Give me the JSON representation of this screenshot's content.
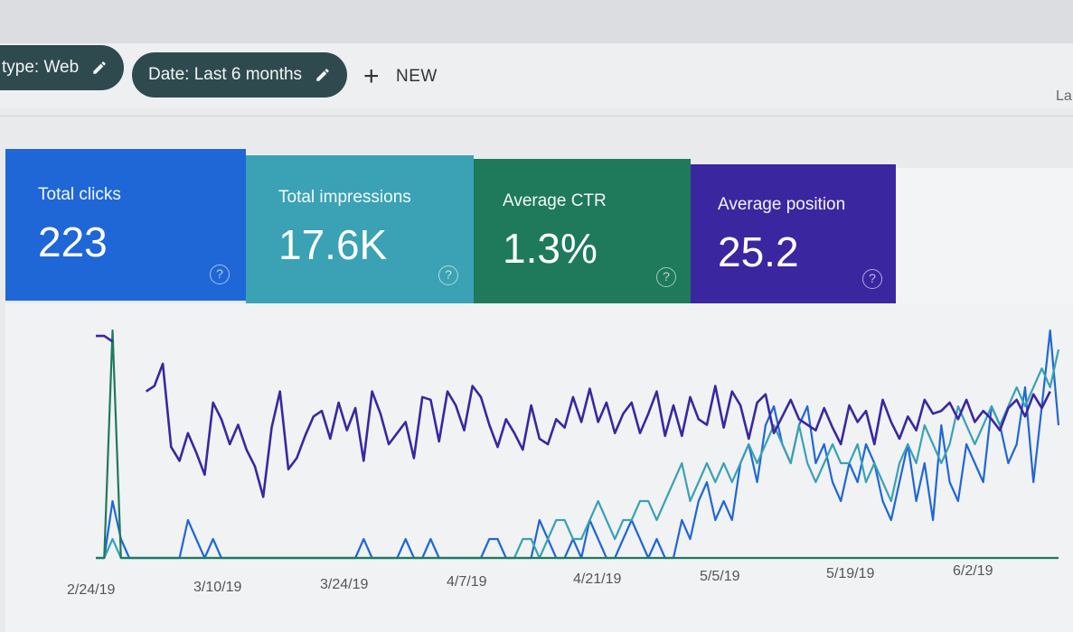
{
  "filters": {
    "type_chip": "type: Web",
    "date_chip": "Date: Last 6 months",
    "new_label": "NEW",
    "right_cut_text": "La"
  },
  "metrics": [
    {
      "label": "Total clicks",
      "value": "223",
      "color": "#1f67d6"
    },
    {
      "label": "Total impressions",
      "value": "17.6K",
      "color": "#3aa2b4"
    },
    {
      "label": "Average CTR",
      "value": "1.3%",
      "color": "#1e7a5b"
    },
    {
      "label": "Average position",
      "value": "25.2",
      "color": "#3a27a0"
    }
  ],
  "help_glyph": "?",
  "icons": [
    "pencil-icon",
    "plus-icon",
    "help-circle-icon"
  ],
  "chart_data": {
    "type": "line",
    "x_tick_labels": [
      "2/24/19",
      "3/10/19",
      "3/24/19",
      "4/7/19",
      "4/21/19",
      "5/5/19",
      "5/19/19",
      "6/2/19"
    ],
    "grid": false,
    "series": [
      {
        "color": "#1f67d6",
        "values": [
          0,
          0,
          3,
          1,
          0,
          0,
          0,
          0,
          0,
          0,
          0,
          2,
          1,
          0,
          1,
          0,
          0,
          0,
          0,
          0,
          0,
          0,
          0,
          0,
          0,
          0,
          0,
          0,
          0,
          0,
          0,
          0,
          1,
          0,
          0,
          0,
          0,
          1,
          0,
          0,
          1,
          0,
          0,
          0,
          0,
          0,
          0,
          1,
          1,
          0,
          0,
          0,
          0,
          2,
          1,
          0,
          0,
          1,
          0,
          2,
          1,
          0,
          0,
          1,
          2,
          1,
          0,
          1,
          0,
          0,
          2,
          1,
          3,
          4,
          2,
          3,
          2,
          5,
          6,
          4,
          7,
          8,
          6,
          5,
          7,
          8,
          5,
          6,
          4,
          3,
          5,
          4,
          6,
          5,
          3,
          2,
          4,
          6,
          3,
          5,
          2,
          7,
          4,
          3,
          6,
          5,
          4,
          8,
          7,
          5,
          6,
          9,
          4,
          8,
          12,
          7
        ]
      },
      {
        "color": "#3aa2b4",
        "values": [
          0,
          0,
          1,
          0,
          0,
          0,
          0,
          0,
          0,
          0,
          0,
          0,
          0,
          0,
          0,
          0,
          0,
          0,
          0,
          0,
          0,
          0,
          0,
          0,
          0,
          0,
          0,
          0,
          0,
          0,
          0,
          0,
          0,
          0,
          0,
          0,
          0,
          0,
          0,
          0,
          0,
          0,
          0,
          0,
          0,
          0,
          0,
          0,
          0,
          0,
          0,
          1,
          1,
          0,
          1,
          2,
          2,
          1,
          1,
          2,
          3,
          2,
          1,
          2,
          2,
          3,
          3,
          2,
          3,
          4,
          5,
          3,
          4,
          5,
          4,
          5,
          4,
          5,
          6,
          5,
          6,
          7,
          6,
          5,
          7,
          5,
          4,
          5,
          6,
          5,
          5,
          6,
          4,
          5,
          4,
          3,
          5,
          6,
          5,
          7,
          6,
          5,
          6,
          8,
          7,
          6,
          7,
          8,
          7,
          8,
          9,
          8,
          9,
          10,
          9,
          11
        ]
      },
      {
        "color": "#1e7a5b",
        "values": [
          0,
          0,
          10,
          0,
          0,
          0,
          0,
          0,
          0,
          0,
          0,
          0,
          0,
          0,
          0,
          0,
          0,
          0,
          0,
          0,
          0,
          0,
          0,
          0,
          0,
          0,
          0,
          0,
          0,
          0,
          0,
          0,
          0,
          0,
          0,
          0,
          0,
          0,
          0,
          0,
          0,
          0,
          0,
          0,
          0,
          0,
          0,
          0,
          0,
          0,
          0,
          0,
          0,
          0,
          0,
          0,
          0,
          0,
          0,
          0,
          0,
          0,
          0,
          0,
          0,
          0,
          0,
          0,
          0,
          0,
          0,
          0,
          0,
          0,
          0,
          0,
          0,
          0,
          0,
          0,
          0,
          0,
          0,
          0,
          0,
          0,
          0,
          0,
          0,
          0,
          0,
          0,
          0,
          0,
          0,
          0,
          0,
          0,
          0,
          0,
          0,
          0,
          0,
          0,
          0,
          0,
          0,
          0,
          0,
          0,
          0,
          0,
          0,
          0,
          0,
          0
        ]
      },
      {
        "color": "#3a27a0",
        "values": [
          80,
          80,
          78,
          null,
          null,
          null,
          60,
          62,
          70,
          40,
          35,
          45,
          38,
          30,
          56,
          50,
          41,
          48,
          39,
          33,
          22,
          47,
          60,
          32,
          36,
          44,
          51,
          53,
          43,
          56,
          46,
          54,
          35,
          60,
          52,
          41,
          45,
          49,
          36,
          58,
          57,
          42,
          60,
          55,
          46,
          62,
          58,
          48,
          40,
          50,
          45,
          39,
          55,
          43,
          41,
          50,
          47,
          58,
          49,
          61,
          49,
          56,
          45,
          52,
          56,
          45,
          52,
          60,
          44,
          55,
          44,
          58,
          50,
          48,
          62,
          47,
          60,
          55,
          43,
          56,
          59,
          45,
          51,
          57,
          50,
          48,
          46,
          54,
          47,
          41,
          55,
          49,
          53,
          41,
          57,
          49,
          43,
          51,
          46,
          57,
          52,
          53,
          56,
          50,
          57,
          49,
          53,
          50,
          46,
          54,
          57,
          51,
          59,
          54,
          60
        ]
      }
    ]
  }
}
